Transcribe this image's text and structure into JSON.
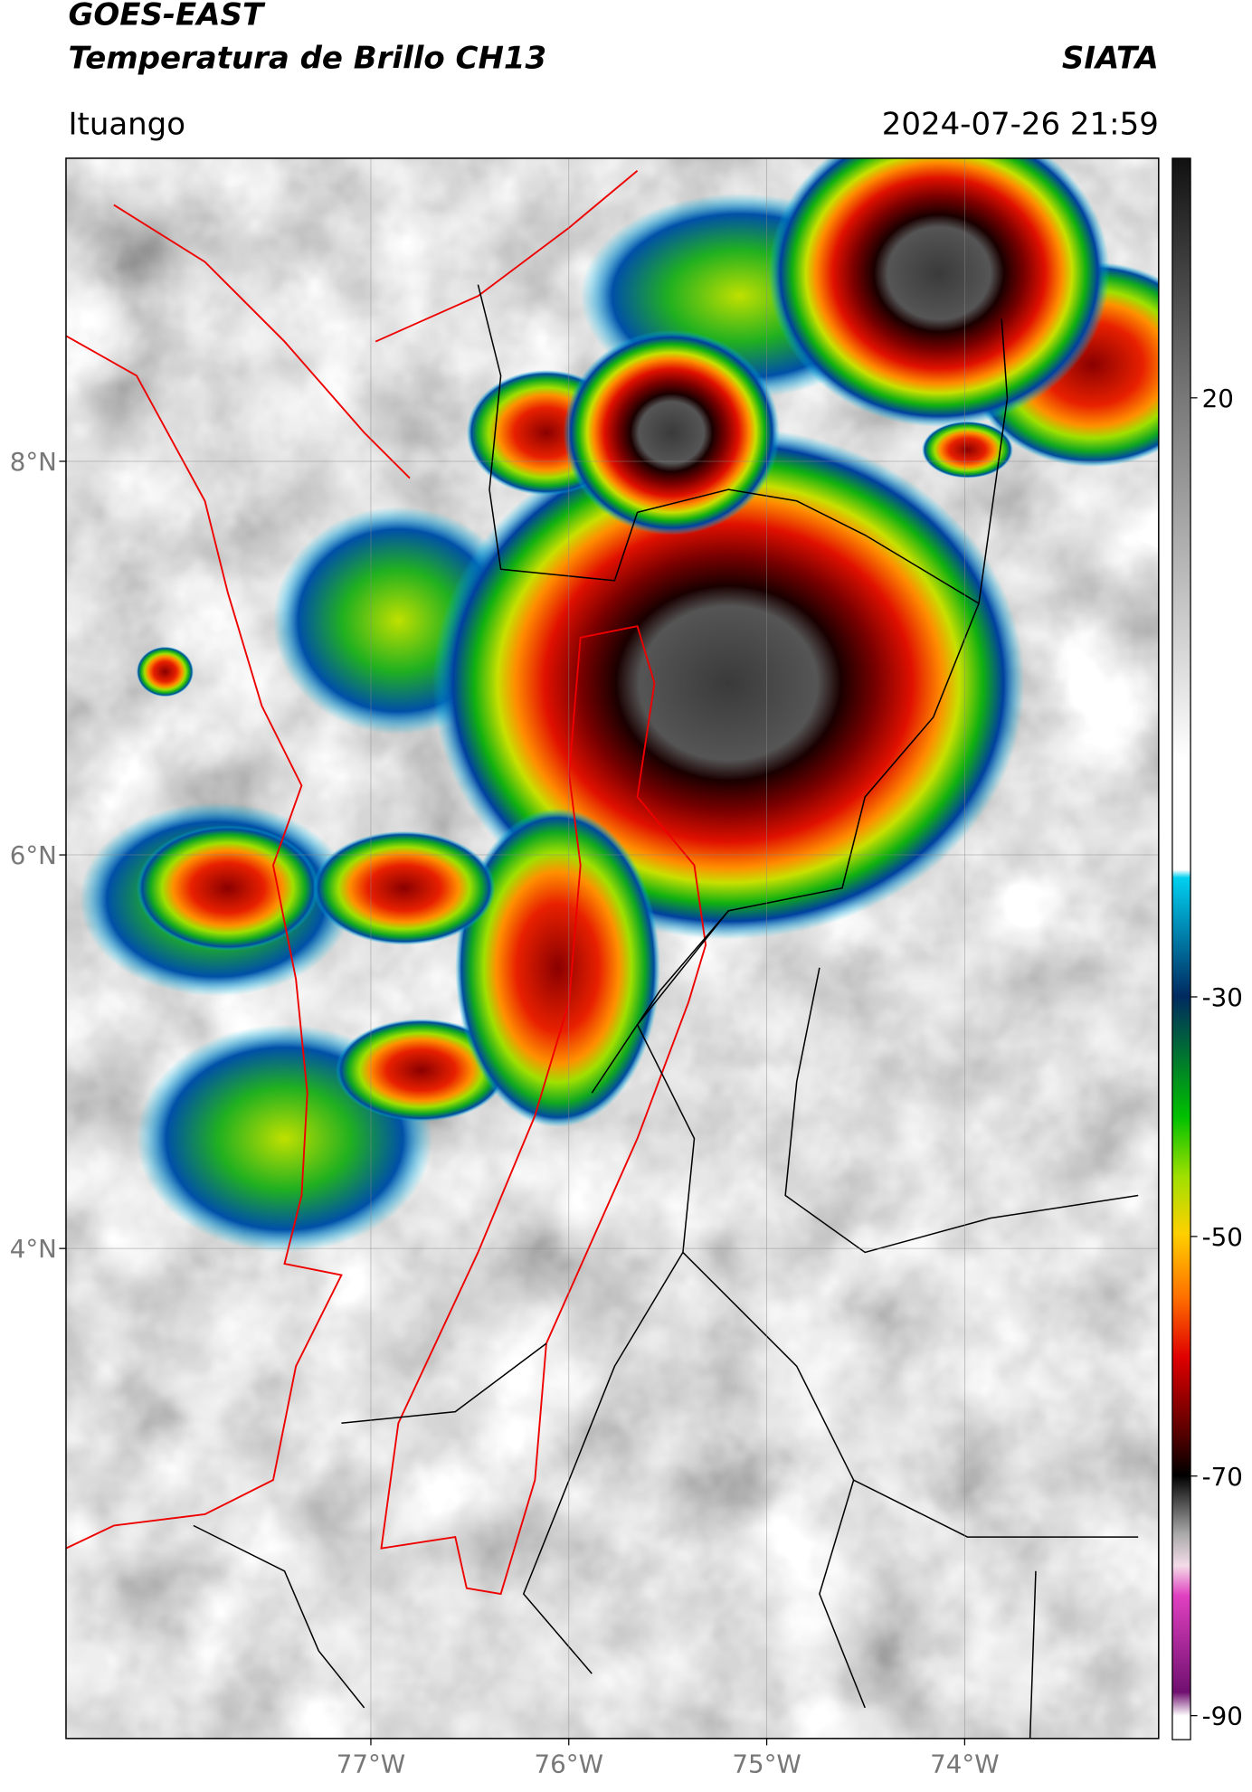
{
  "header": {
    "satellite": "GOES-EAST",
    "product": "Temperatura de Brillo CH13",
    "agency": "SIATA",
    "region": "Ituango",
    "datetime": "2024-07-26 21:59"
  },
  "map": {
    "xlim": [
      -78.54,
      -73.02
    ],
    "ylim": [
      1.51,
      9.54
    ],
    "xticks": [
      {
        "value": -77,
        "label": "77°W"
      },
      {
        "value": -76,
        "label": "76°W"
      },
      {
        "value": -75,
        "label": "75°W"
      },
      {
        "value": -74,
        "label": "74°W"
      }
    ],
    "yticks": [
      {
        "value": 8,
        "label": "8°N"
      },
      {
        "value": 6,
        "label": "6°N"
      },
      {
        "value": 4,
        "label": "4°N"
      }
    ],
    "grid": true
  },
  "colorbar": {
    "lim": [
      -92,
      40
    ],
    "ticks": [
      20,
      -30,
      -50,
      -70,
      -90
    ]
  }
}
